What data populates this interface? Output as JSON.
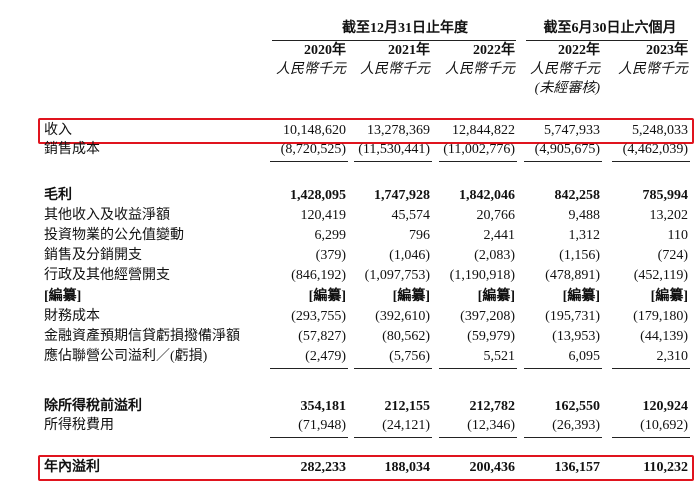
{
  "table": {
    "period_groups": [
      "截至12月31日止年度",
      "截至6月30日止六個月"
    ],
    "years": [
      "2020年",
      "2021年",
      "2022年",
      "2022年",
      "2023年"
    ],
    "units": [
      "人民幣千元",
      "人民幣千元",
      "人民幣千元",
      "人民幣千元",
      "人民幣千元"
    ],
    "unaudited_note": "(未經審核)",
    "rows": [
      {
        "label": "收入",
        "values": [
          "10,148,620",
          "13,278,369",
          "12,844,822",
          "5,747,933",
          "5,248,033"
        ],
        "highlight": true
      },
      {
        "label": "銷售成本",
        "values": [
          "(8,720,525)",
          "(11,530,441)",
          "(11,002,776)",
          "(4,905,675)",
          "(4,462,039)"
        ],
        "rule_below": true
      },
      {
        "label": "毛利",
        "values": [
          "1,428,095",
          "1,747,928",
          "1,842,046",
          "842,258",
          "785,994"
        ],
        "bold": true
      },
      {
        "label": "其他收入及收益淨額",
        "values": [
          "120,419",
          "45,574",
          "20,766",
          "9,488",
          "13,202"
        ]
      },
      {
        "label": "投資物業的公允值變動",
        "values": [
          "6,299",
          "796",
          "2,441",
          "1,312",
          "110"
        ]
      },
      {
        "label": "銷售及分銷開支",
        "values": [
          "(379)",
          "(1,046)",
          "(2,083)",
          "(1,156)",
          "(724)"
        ]
      },
      {
        "label": "行政及其他經營開支",
        "values": [
          "(846,192)",
          "(1,097,753)",
          "(1,190,918)",
          "(478,891)",
          "(452,119)"
        ]
      },
      {
        "label": "[編纂]",
        "values": [
          "[編纂]",
          "[編纂]",
          "[編纂]",
          "[編纂]",
          "[編纂]"
        ],
        "bold": true
      },
      {
        "label": "財務成本",
        "values": [
          "(293,755)",
          "(392,610)",
          "(397,208)",
          "(195,731)",
          "(179,180)"
        ]
      },
      {
        "label": "金融資產預期信貸虧損撥備淨額",
        "values": [
          "(57,827)",
          "(80,562)",
          "(59,979)",
          "(13,953)",
          "(44,139)"
        ]
      },
      {
        "label": "應佔聯營公司溢利／(虧損)",
        "values": [
          "(2,479)",
          "(5,756)",
          "5,521",
          "6,095",
          "2,310"
        ],
        "rule_below": true
      },
      {
        "label": "除所得稅前溢利",
        "values": [
          "354,181",
          "212,155",
          "212,782",
          "162,550",
          "120,924"
        ],
        "bold": true
      },
      {
        "label": "所得稅費用",
        "values": [
          "(71,948)",
          "(24,121)",
          "(12,346)",
          "(26,393)",
          "(10,692)"
        ],
        "rule_below": true
      },
      {
        "label": "年內溢利",
        "values": [
          "282,233",
          "188,034",
          "200,436",
          "136,157",
          "110,232"
        ],
        "bold": true,
        "highlight": true
      }
    ]
  }
}
